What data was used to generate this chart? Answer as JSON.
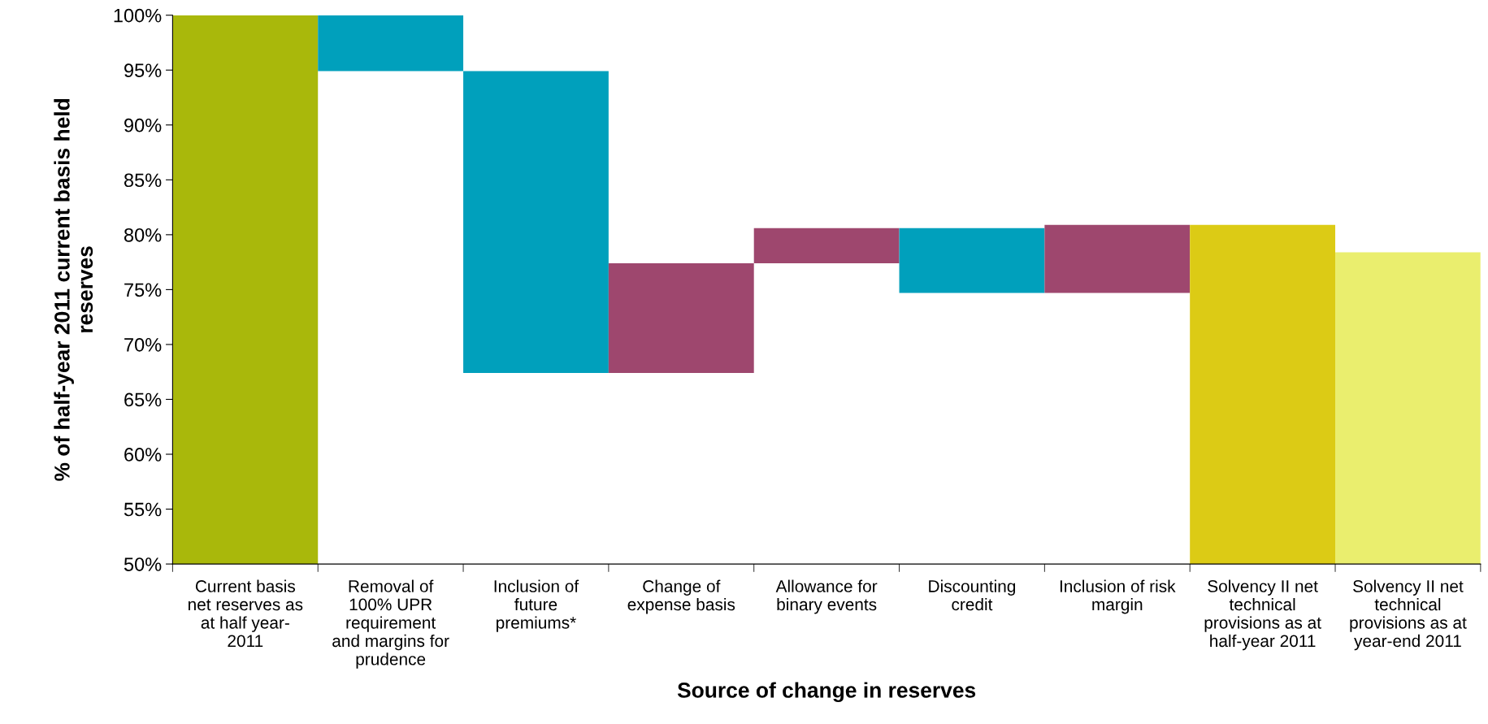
{
  "chart_data": {
    "type": "bar",
    "xlabel": "Source of change in reserves",
    "ylabel": "% of half-year 2011 current basis held\nreserves",
    "categories": [
      "Current basis\nnet reserves as\nat half year-\n2011",
      "Removal of\n100% UPR\nrequirement\nand margins for\nprudence",
      "Inclusion of\nfuture\npremiums*",
      "Change of\nexpense basis",
      "Allowance for\nbinary events",
      "Discounting\ncredit",
      "Inclusion of risk\nmargin",
      "Solvency II net\ntechnical\nprovisions as at\nhalf-year 2011",
      "Solvency II net\ntechnical\nprovisions as at\nyear-end 2011"
    ],
    "base": [
      50,
      100,
      94.9,
      67.4,
      77.4,
      80.6,
      74.7,
      50,
      50
    ],
    "values": [
      50,
      -5.1,
      -27.5,
      10.0,
      3.2,
      -5.9,
      6.2,
      30.9,
      28.4
    ],
    "colors": [
      "#a9b80b",
      "#00a0bc",
      "#00a0bc",
      "#9e476e",
      "#9e476e",
      "#00a0bc",
      "#9e476e",
      "#dccb15",
      "#eaee6e"
    ],
    "ylim": [
      50,
      100
    ],
    "yticks": [
      {
        "value": 50,
        "label": "50%"
      },
      {
        "value": 55,
        "label": "55%"
      },
      {
        "value": 60,
        "label": "60%"
      },
      {
        "value": 65,
        "label": "65%"
      },
      {
        "value": 70,
        "label": "70%"
      },
      {
        "value": 75,
        "label": "75%"
      },
      {
        "value": 80,
        "label": "80%"
      },
      {
        "value": 85,
        "label": "85%"
      },
      {
        "value": 90,
        "label": "90%"
      },
      {
        "value": 95,
        "label": "95%"
      },
      {
        "value": 100,
        "label": "100%"
      }
    ],
    "grid": false
  }
}
